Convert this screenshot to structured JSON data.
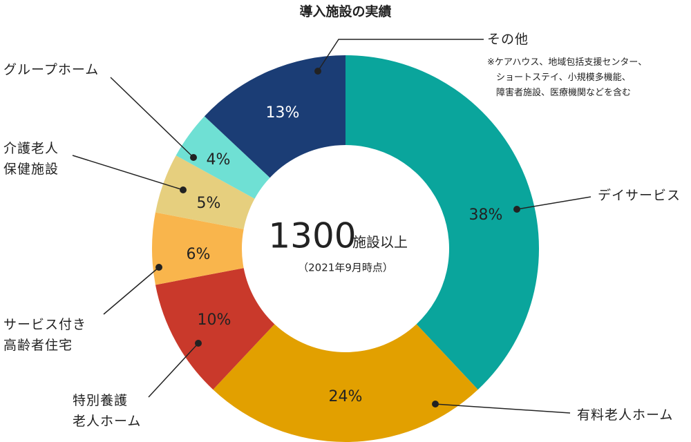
{
  "chart_data": {
    "type": "donut",
    "title": "導入施設の実績",
    "categories": [
      "デイサービス",
      "有料老人ホーム",
      "特別養護\n老人ホーム",
      "サービス付き\n高齢者住宅",
      "介護老人\n保健施設",
      "グループホーム",
      "その他"
    ],
    "values": [
      38,
      24,
      10,
      6,
      5,
      4,
      13
    ],
    "value_labels": [
      "38%",
      "24%",
      "10%",
      "6%",
      "5%",
      "4%",
      "13%"
    ],
    "colors": [
      "#0aa59c",
      "#e2a000",
      "#c9392b",
      "#f9b54c",
      "#e6cf7e",
      "#6fe0d4",
      "#1b3d75"
    ],
    "center_number": "1300",
    "center_unit": "施設以上",
    "center_note": "（2021年9月時点）",
    "other_note": "※ケアハウス、地域包括支援センター、\n　ショートステイ、小規模多機能、\n　障害者施設、医療機関などを含む"
  }
}
